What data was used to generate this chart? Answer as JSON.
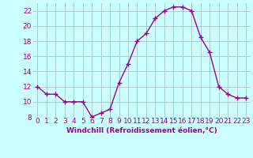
{
  "x": [
    0,
    1,
    2,
    3,
    4,
    5,
    6,
    7,
    8,
    9,
    10,
    11,
    12,
    13,
    14,
    15,
    16,
    17,
    18,
    19,
    20,
    21,
    22,
    23
  ],
  "y": [
    12,
    11,
    11,
    10,
    10,
    10,
    8,
    8.5,
    9,
    12.5,
    15,
    18,
    19,
    21,
    22,
    22.5,
    22.5,
    22,
    18.5,
    16.5,
    12,
    11,
    10.5,
    10.5
  ],
  "line_color": "#990099",
  "marker": "+",
  "marker_size": 4,
  "bg_color": "#ccffff",
  "grid_color": "#aacccc",
  "xlabel": "Windchill (Refroidissement éolien,°C)",
  "xlabel_color": "#990099",
  "tick_color": "#990099",
  "ylim": [
    8,
    23
  ],
  "xlim": [
    -0.5,
    23.5
  ],
  "yticks": [
    8,
    10,
    12,
    14,
    16,
    18,
    20,
    22
  ],
  "xticks": [
    0,
    1,
    2,
    3,
    4,
    5,
    6,
    7,
    8,
    9,
    10,
    11,
    12,
    13,
    14,
    15,
    16,
    17,
    18,
    19,
    20,
    21,
    22,
    23
  ],
  "xtick_labels": [
    "0",
    "1",
    "2",
    "3",
    "4",
    "5",
    "6",
    "7",
    "8",
    "9",
    "10",
    "11",
    "12",
    "13",
    "14",
    "15",
    "16",
    "17",
    "18",
    "19",
    "20",
    "21",
    "22",
    "23"
  ],
  "ytick_labels": [
    "8",
    "10",
    "12",
    "14",
    "16",
    "18",
    "20",
    "22"
  ],
  "font_size": 6.5,
  "line_width": 1.0
}
